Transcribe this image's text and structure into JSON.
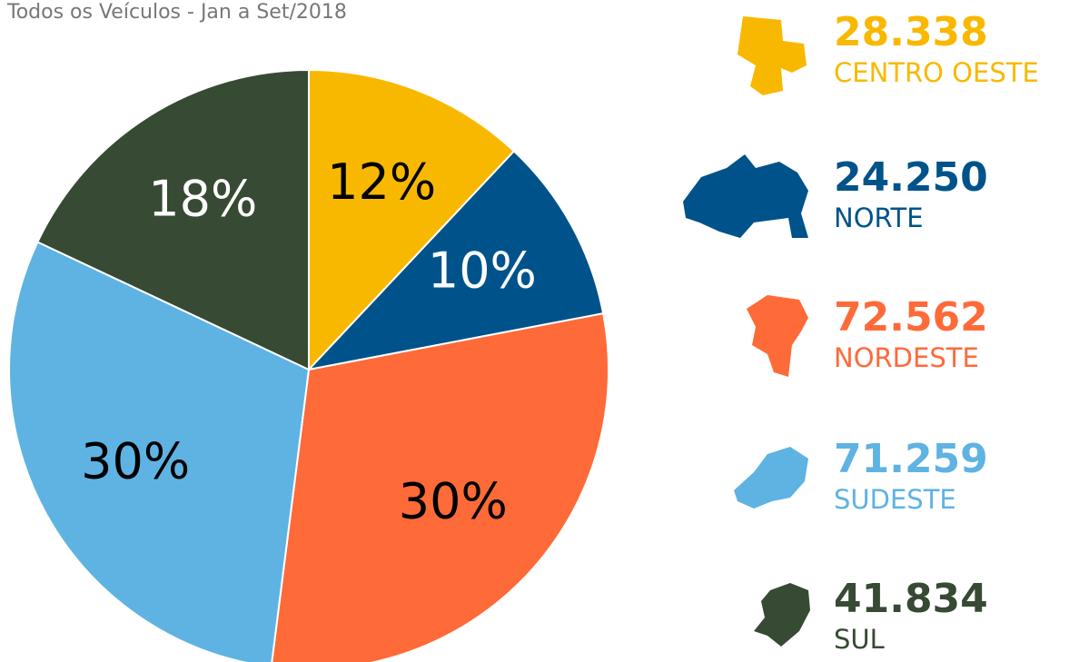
{
  "chart_data": {
    "type": "pie",
    "title": "Todos os Veículos - Jan a Set/2018",
    "categories": [
      "CENTRO OESTE",
      "NORTE",
      "NORDESTE",
      "SUDESTE",
      "SUL"
    ],
    "values": [
      12,
      10,
      30,
      30,
      18
    ],
    "value_labels": [
      "12%",
      "10%",
      "30%",
      "30%",
      "18%"
    ],
    "counts": [
      {
        "value": 28338,
        "label": "28.338"
      },
      {
        "value": 24250,
        "label": "24.250"
      },
      {
        "value": 72562,
        "label": "72.562"
      },
      {
        "value": 71259,
        "label": "71.259"
      },
      {
        "value": 41834,
        "label": "41.834"
      }
    ],
    "colors": [
      "#f9b800",
      "#00538a",
      "#ff6a39",
      "#5fb3e3",
      "#374a33"
    ],
    "label_colors": [
      "#000000",
      "#ffffff",
      "#000000",
      "#000000",
      "#ffffff"
    ]
  }
}
